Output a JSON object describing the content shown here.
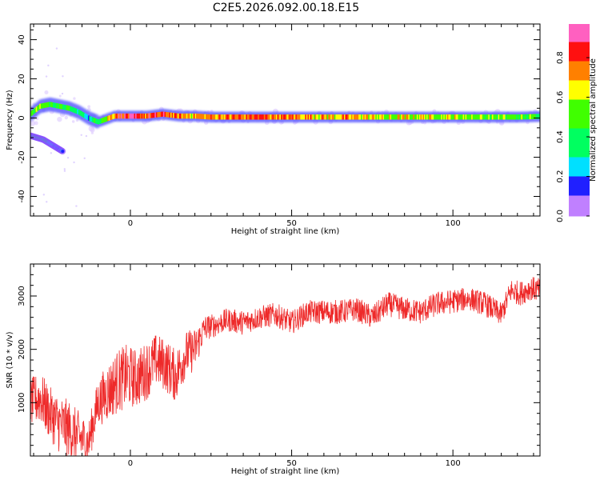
{
  "title": "C2E5.2026.092.00.18.E15",
  "chart_data": [
    {
      "type": "heatmap",
      "xlabel": "Height of straight line (km)",
      "ylabel": "Frequency (Hz)",
      "xlim": [
        -31,
        127
      ],
      "ylim": [
        -50,
        48
      ],
      "xticks": [
        0,
        50,
        100
      ],
      "yticks": [
        -40,
        -20,
        0,
        20,
        40
      ],
      "colorbar": {
        "label": "Normalized spectral amplitude",
        "range": [
          0,
          0.97
        ],
        "ticks": [
          0.0,
          0.2,
          0.4,
          0.6,
          0.8
        ],
        "colormap": "rainbow (magenta-blue-cyan-green-yellow-red-pink)"
      },
      "ridge": {
        "description": "dominant frequency ridge",
        "x": [
          -31,
          -28,
          -25,
          -22,
          -19,
          -16,
          -13,
          -10,
          -5,
          0,
          5,
          10,
          15,
          20,
          25,
          30,
          40,
          50,
          60,
          70,
          80,
          90,
          100,
          110,
          120,
          127
        ],
        "y": [
          2,
          6,
          7,
          6,
          5,
          3,
          0,
          -2,
          1,
          1,
          1,
          2,
          1,
          1,
          0.5,
          0.5,
          0.5,
          0.5,
          0.5,
          0.5,
          0.5,
          0.5,
          0.5,
          0.5,
          0.5,
          0.8
        ],
        "amplitude": [
          0.5,
          0.55,
          0.5,
          0.45,
          0.4,
          0.35,
          0.3,
          0.45,
          0.8,
          0.85,
          0.8,
          0.8,
          0.75,
          0.7,
          0.75,
          0.75,
          0.8,
          0.75,
          0.7,
          0.7,
          0.6,
          0.65,
          0.6,
          0.55,
          0.5,
          0.5
        ]
      },
      "secondary_band": {
        "description": "negative-frequency branch",
        "x": [
          -31,
          -29,
          -27,
          -25,
          -23,
          -21
        ],
        "y": [
          -9,
          -10,
          -11,
          -13,
          -15,
          -17
        ],
        "amplitude": [
          0.3,
          0.4,
          0.35,
          0.3,
          0.2,
          0.15
        ]
      }
    },
    {
      "type": "line",
      "xlabel": "Height of straight line (km)",
      "ylabel": "SNR (10 * v/v)",
      "xlim": [
        -31,
        127
      ],
      "ylim": [
        0,
        3600
      ],
      "xticks": [
        0,
        50,
        100
      ],
      "yticks": [
        1000,
        2000,
        3000
      ],
      "line_color": "#ee2a2a",
      "series": [
        {
          "x": [
            -31,
            -28,
            -25,
            -22,
            -19,
            -16,
            -13,
            -10,
            -7,
            -4,
            -1,
            2,
            5,
            8,
            11,
            14,
            17,
            20,
            23,
            26,
            30,
            35,
            40,
            45,
            50,
            55,
            60,
            65,
            70,
            75,
            80,
            85,
            90,
            95,
            100,
            105,
            110,
            115,
            118,
            121,
            124,
            127
          ],
          "y": [
            1000,
            1100,
            800,
            600,
            500,
            350,
            250,
            1000,
            1200,
            1400,
            1500,
            1450,
            1600,
            1800,
            1700,
            1500,
            1900,
            2000,
            2400,
            2450,
            2550,
            2500,
            2600,
            2650,
            2500,
            2700,
            2700,
            2700,
            2750,
            2600,
            2850,
            2750,
            2700,
            2850,
            2900,
            2950,
            2850,
            2650,
            3100,
            3050,
            3150,
            3100
          ],
          "noise_amplitude": [
            450,
            500,
            500,
            550,
            550,
            500,
            400,
            450,
            550,
            600,
            600,
            550,
            550,
            500,
            500,
            500,
            450,
            400,
            250,
            220,
            220,
            230,
            220,
            230,
            220,
            220,
            230,
            230,
            220,
            230,
            230,
            230,
            230,
            230,
            230,
            220,
            230,
            220,
            230,
            230,
            230,
            230
          ]
        }
      ]
    }
  ]
}
